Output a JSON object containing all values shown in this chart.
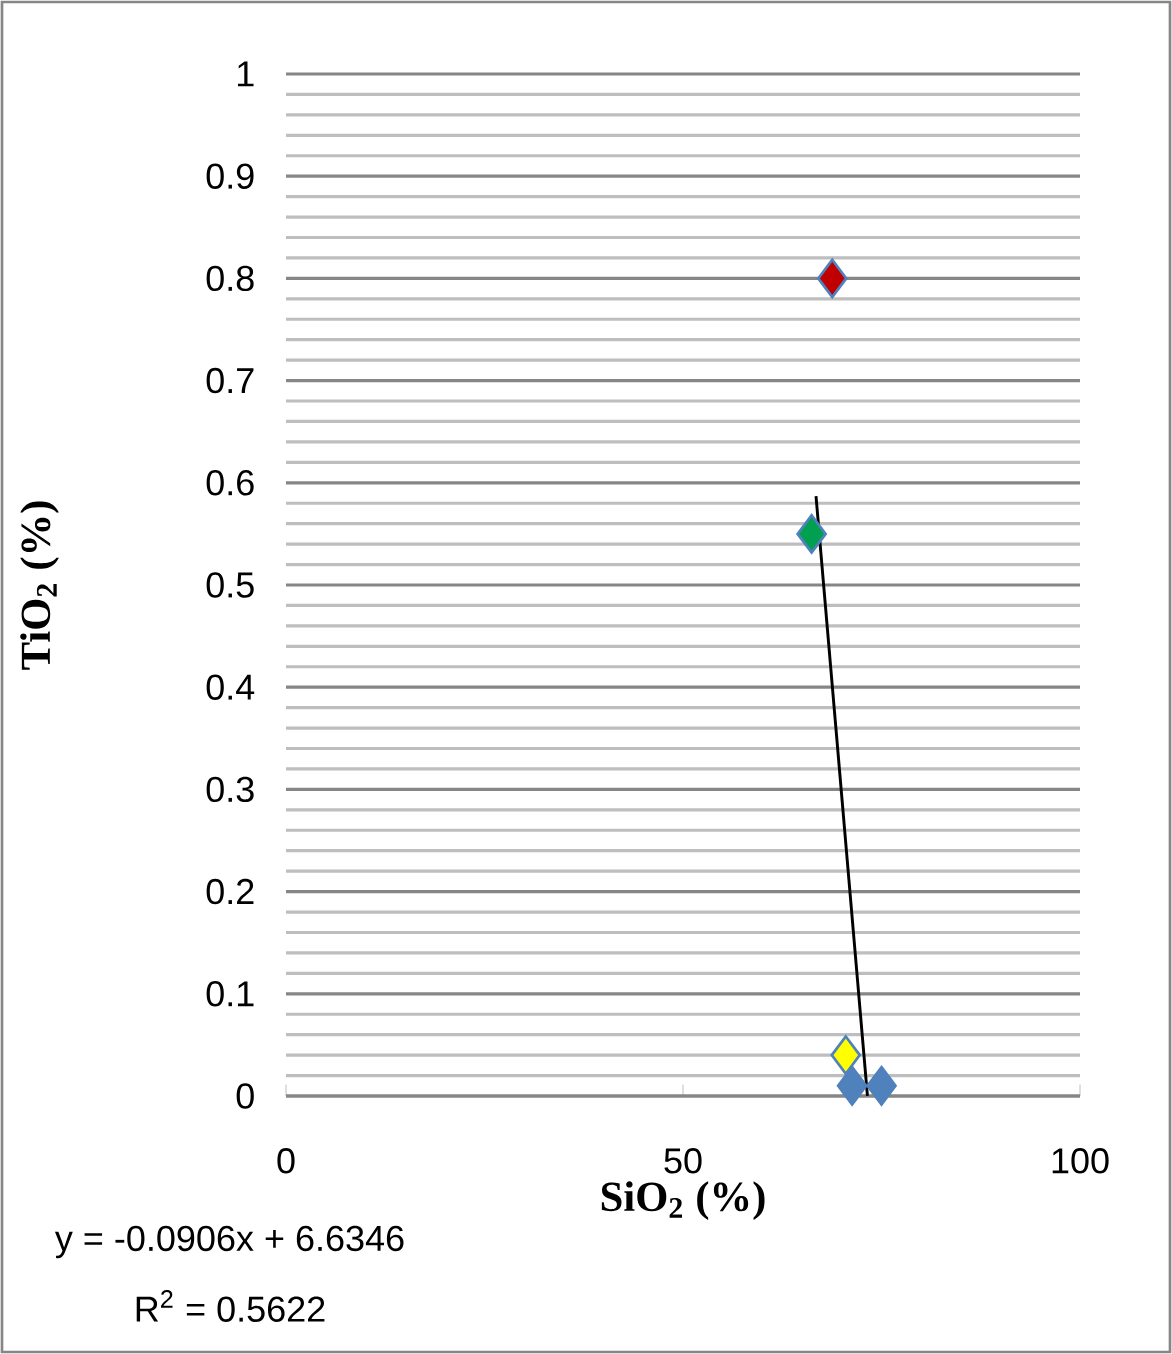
{
  "chart_data": {
    "type": "scatter",
    "xlabel": "**SiO$_{2}$ (%)**",
    "ylabel": "**TiO$_{2}$ (%)**",
    "xlim": [
      0,
      100
    ],
    "xticks": [
      0,
      50,
      100
    ],
    "ylim": [
      0,
      1
    ],
    "yticks": [
      0,
      0.1,
      0.2,
      0.3,
      0.4,
      0.5,
      0.6,
      0.7,
      0.8,
      0.9,
      1
    ],
    "grid": "y",
    "marker": "diamond",
    "annotations": [
      "y = -0.0906x + 6.6346",
      "R$^{2}$ = 0.5622"
    ],
    "series": [
      {
        "x": [
          71.3,
          75,
          70.5,
          66.2,
          68.8
        ],
        "values": [
          0.01,
          0.01,
          0.04,
          0.55,
          0.8
        ],
        "colors": [
          "#4f81bd",
          "#4f81bd",
          "#ffff00",
          "#00a050",
          "#c00000"
        ],
        "color": "#4f81bd"
      },
      {
        "type": "line",
        "x": [
          66.75,
          73.23
        ],
        "values": [
          0.587,
          0
        ],
        "color": "#000000",
        "marker": "none"
      }
    ]
  }
}
